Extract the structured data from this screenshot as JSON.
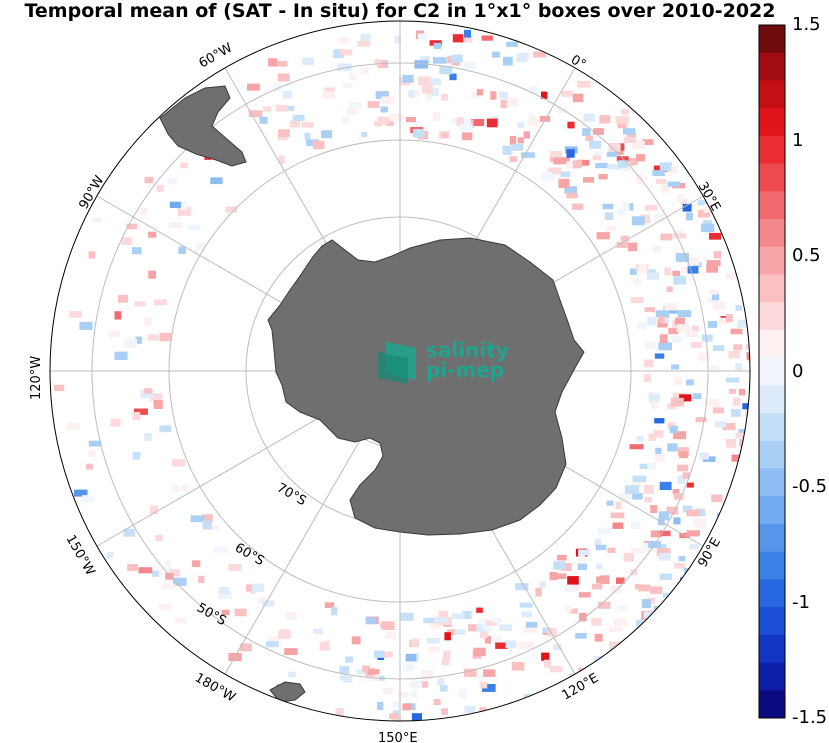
{
  "title": "Temporal mean of (SAT - In situ) for C2 in 1°x1° boxes over 2010-2022",
  "logo": {
    "line1": "salinity",
    "line2": "pi-mep"
  },
  "colors": {
    "land": "#6f6f6f",
    "grid": "#bdbdbd",
    "logo": "#1fa58f"
  },
  "longitude_labels": [
    {
      "id": "lon-60w",
      "text": "60°W"
    },
    {
      "id": "lon-0",
      "text": "0°"
    },
    {
      "id": "lon-90w",
      "text": "90°W"
    },
    {
      "id": "lon-30e",
      "text": "30°E"
    },
    {
      "id": "lon-120w",
      "text": "120°W"
    },
    {
      "id": "lon-150w",
      "text": "150°W"
    },
    {
      "id": "lon-90e",
      "text": "90°E"
    },
    {
      "id": "lon-180w",
      "text": "180°W"
    },
    {
      "id": "lon-120e",
      "text": "120°E"
    },
    {
      "id": "lon-150e",
      "text": "150°E"
    }
  ],
  "latitude_labels": [
    {
      "id": "lat-70s",
      "text": "70°S"
    },
    {
      "id": "lat-60s",
      "text": "60°S"
    },
    {
      "id": "lat-50s",
      "text": "50°S"
    }
  ],
  "colorbar": {
    "min": -1.5,
    "max": 1.5,
    "ticks": [
      "1.5",
      "1",
      "0.5",
      "0",
      "-0.5",
      "-1",
      "-1.5"
    ],
    "colors": [
      "#0b0b80",
      "#0d1fa6",
      "#1236c4",
      "#1a4fd6",
      "#2768e0",
      "#3b80e6",
      "#5595ea",
      "#71aaee",
      "#8dbdf2",
      "#a9cff5",
      "#c4dff8",
      "#ddebfa",
      "#f1f6fd",
      "#fdf0f0",
      "#fcd9da",
      "#fac0c2",
      "#f7a4a7",
      "#f4878b",
      "#f16a6f",
      "#ee4b51",
      "#eb2c33",
      "#e0141b",
      "#c40f15",
      "#a00c10",
      "#6e0a0c"
    ]
  }
}
